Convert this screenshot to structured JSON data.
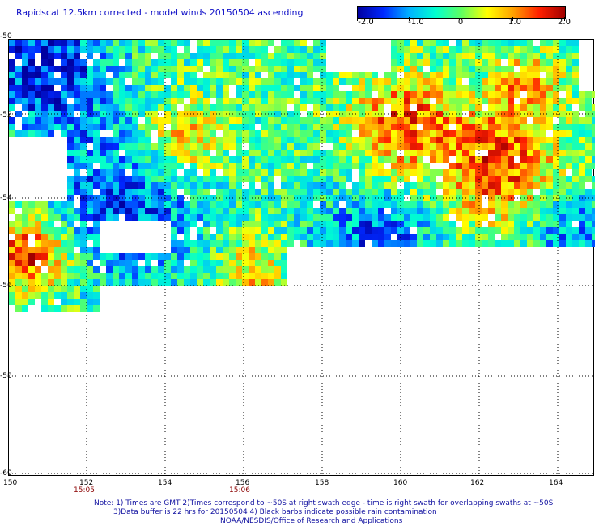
{
  "title": "Rapidscat 12.5km corrected - model winds 20150504 ascending",
  "colorbar": {
    "labels": [
      "-2.0",
      "-1.0",
      "0",
      "1.0",
      "2.0"
    ],
    "stops": [
      "#0000a0",
      "#0028ff",
      "#00b4ff",
      "#00ffd0",
      "#60ff60",
      "#ffff00",
      "#ffa000",
      "#ff2000",
      "#a00000"
    ]
  },
  "map": {
    "lat_labels": [
      "-50",
      "-52",
      "-54",
      "-56",
      "-58",
      "-60"
    ],
    "lon_labels": [
      "150",
      "152",
      "154",
      "156",
      "158",
      "160",
      "162",
      "164"
    ],
    "time_labels": [
      "15:05",
      "15:06"
    ]
  },
  "notes": {
    "line1": "Note: 1) Times are GMT 2)Times correspond to ~50S at right swath edge - time is right swath for overlapping swaths at ~50S",
    "line2": "3)Data buffer is 22 hrs for 20150504 4) Black barbs indicate possible rain contamination",
    "line3": "NOAA/NESDIS/Office of Research and Applications"
  },
  "colors": {
    "title": "#1010c8",
    "time": "#8b0000",
    "note": "#1010a0"
  }
}
